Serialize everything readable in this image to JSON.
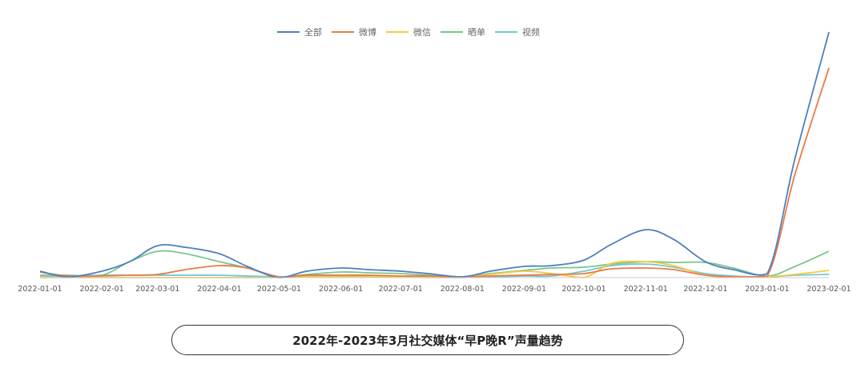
{
  "chart_data": {
    "type": "line",
    "title": "2022年-2023年3月社交媒体“早P晚R”声量趋势",
    "legend_position": "top-center",
    "grid": false,
    "x": [
      "2022-01-01",
      "2022-01-15",
      "2022-02-01",
      "2022-02-15",
      "2022-03-01",
      "2022-03-15",
      "2022-04-01",
      "2022-04-15",
      "2022-05-01",
      "2022-05-15",
      "2022-06-01",
      "2022-06-15",
      "2022-07-01",
      "2022-07-15",
      "2022-08-01",
      "2022-08-15",
      "2022-09-01",
      "2022-09-15",
      "2022-10-01",
      "2022-10-15",
      "2022-11-01",
      "2022-11-15",
      "2022-12-01",
      "2022-12-15",
      "2023-01-01",
      "2023-01-15",
      "2023-02-01"
    ],
    "xticks": [
      "2022-01-01",
      "2022-02-01",
      "2022-03-01",
      "2022-04-01",
      "2022-05-01",
      "2022-06-01",
      "2022-07-01",
      "2022-08-01",
      "2022-09-01",
      "2022-10-01",
      "2022-11-01",
      "2022-12-01",
      "2023-01-01",
      "2023-02-01"
    ],
    "ylim": [
      0,
      310
    ],
    "series": [
      {
        "name": "全部",
        "color": "#4e7fc0",
        "values": [
          8,
          1,
          8,
          20,
          40,
          38,
          30,
          14,
          0,
          8,
          12,
          10,
          8,
          5,
          1,
          8,
          14,
          15,
          22,
          42,
          60,
          48,
          20,
          10,
          5,
          150,
          308
        ]
      },
      {
        "name": "微博",
        "color": "#ec7a45",
        "values": [
          7,
          2,
          2,
          3,
          4,
          10,
          15,
          12,
          1,
          3,
          3,
          3,
          2,
          2,
          1,
          2,
          3,
          4,
          5,
          11,
          12,
          10,
          3,
          1,
          2,
          130,
          263
        ]
      },
      {
        "name": "微信",
        "color": "#f6ca3e",
        "values": [
          0,
          0,
          0,
          0,
          0,
          0,
          0,
          0,
          0,
          1,
          1,
          1,
          1,
          0,
          0,
          4,
          8,
          5,
          0,
          18,
          20,
          15,
          3,
          1,
          1,
          4,
          9
        ]
      },
      {
        "name": "晒单",
        "color": "#7cc58c",
        "values": [
          3,
          3,
          3,
          20,
          33,
          30,
          20,
          12,
          1,
          4,
          7,
          6,
          5,
          3,
          1,
          5,
          9,
          12,
          13,
          17,
          20,
          19,
          19,
          12,
          2,
          14,
          33
        ]
      },
      {
        "name": "视频",
        "color": "#6fc8d3",
        "values": [
          2,
          2,
          3,
          3,
          3,
          3,
          3,
          2,
          1,
          2,
          2,
          2,
          1,
          1,
          1,
          1,
          2,
          2,
          8,
          15,
          17,
          13,
          5,
          2,
          1,
          3,
          4
        ]
      }
    ]
  }
}
